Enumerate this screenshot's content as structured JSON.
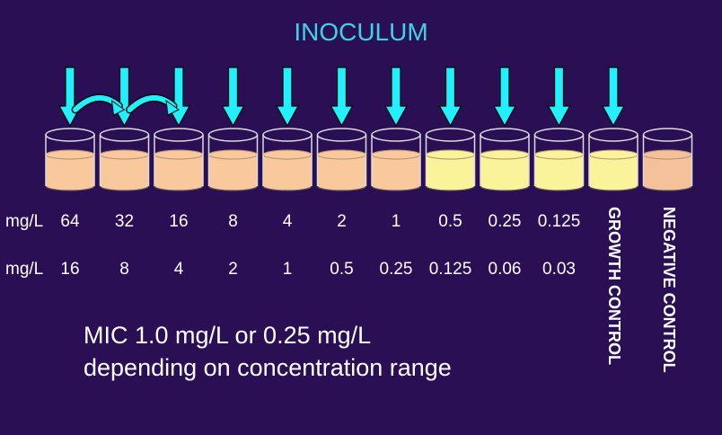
{
  "title": "INOCULUM",
  "row1": {
    "unit": "mg/L",
    "values": [
      "64",
      "32",
      "16",
      "8",
      "4",
      "2",
      "1",
      "0.5",
      "0.25",
      "0.125"
    ]
  },
  "row2": {
    "unit": "mg/L",
    "values": [
      "16",
      "8",
      "4",
      "2",
      "1",
      "0.5",
      "0.25",
      "0.125",
      "0.06",
      "0.03"
    ]
  },
  "controls": {
    "growth": "GROWTH CONTROL",
    "negative": "NEGATIVE CONTROL"
  },
  "mic": {
    "line1": "MIC 1.0 mg/L or 0.25 mg/L",
    "line2": "depending on concentration range"
  },
  "colors": {
    "background": "#2b0f55",
    "arrow": "#22f0ff",
    "inhibited_well": "#f9c89c",
    "growth_well": "#fbf39a",
    "negative_well": "#f5c19a"
  },
  "wells": [
    {
      "state": "inhibited"
    },
    {
      "state": "inhibited"
    },
    {
      "state": "inhibited"
    },
    {
      "state": "inhibited"
    },
    {
      "state": "inhibited"
    },
    {
      "state": "inhibited"
    },
    {
      "state": "inhibited"
    },
    {
      "state": "growth"
    },
    {
      "state": "growth"
    },
    {
      "state": "growth"
    },
    {
      "state": "growth"
    },
    {
      "state": "negative"
    }
  ],
  "arrow_count": 11,
  "transfer_arrows": 2
}
